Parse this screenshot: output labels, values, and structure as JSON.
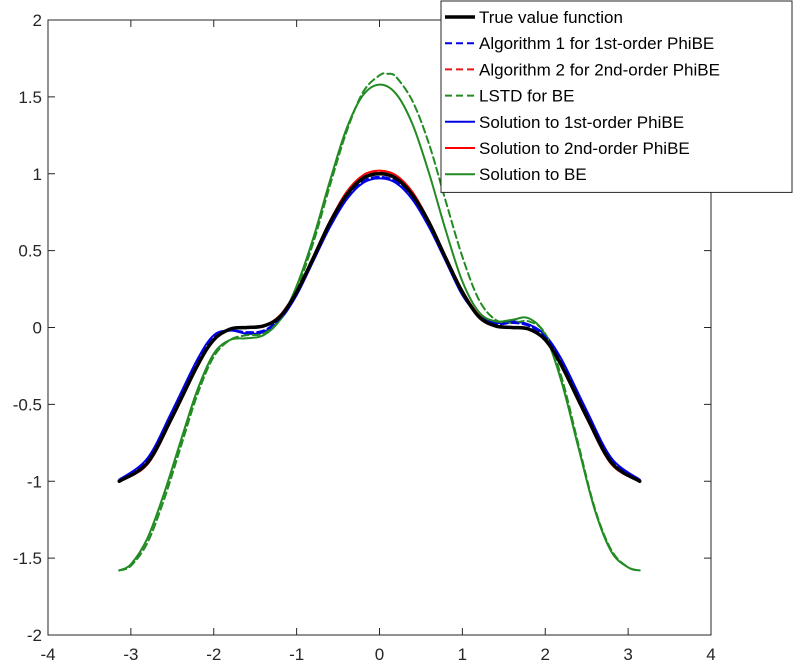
{
  "chart_data": {
    "type": "line",
    "xlim": [
      -4,
      4
    ],
    "ylim": [
      -2,
      2
    ],
    "xticks": [
      -4,
      -3,
      -2,
      -1,
      0,
      1,
      2,
      3,
      4
    ],
    "yticks": [
      -2,
      -1.5,
      -1,
      -0.5,
      0,
      0.5,
      1,
      1.5,
      2
    ],
    "grid": false,
    "legend_position": "top-right",
    "series": [
      {
        "name": "True value function",
        "color": "#000000",
        "style": "solid",
        "width": 3.5,
        "x": [
          -3.14,
          -2.8,
          -2.5,
          -2.2,
          -2.0,
          -1.8,
          -1.6,
          -1.4,
          -1.2,
          -1.0,
          -0.8,
          -0.6,
          -0.4,
          -0.2,
          0.0,
          0.2,
          0.4,
          0.6,
          0.8,
          1.0,
          1.2,
          1.4,
          1.6,
          1.8,
          2.0,
          2.2,
          2.5,
          2.8,
          3.14
        ],
        "y": [
          -1.0,
          -0.88,
          -0.58,
          -0.25,
          -0.08,
          -0.01,
          0.0,
          0.01,
          0.07,
          0.23,
          0.45,
          0.68,
          0.86,
          0.97,
          1.0,
          0.97,
          0.86,
          0.68,
          0.45,
          0.23,
          0.07,
          0.01,
          0.0,
          -0.01,
          -0.08,
          -0.25,
          -0.58,
          -0.88,
          -1.0
        ]
      },
      {
        "name": "Algorithm 1 for 1st-order PhiBE",
        "color": "#0000e6",
        "style": "dashed",
        "width": 2,
        "x": [
          -3.14,
          -2.8,
          -2.5,
          -2.2,
          -2.0,
          -1.8,
          -1.6,
          -1.4,
          -1.2,
          -1.0,
          -0.8,
          -0.6,
          -0.4,
          -0.2,
          0.0,
          0.2,
          0.4,
          0.6,
          0.8,
          1.0,
          1.2,
          1.4,
          1.6,
          1.8,
          2.0,
          2.2,
          2.5,
          2.8,
          3.14
        ],
        "y": [
          -0.99,
          -0.86,
          -0.55,
          -0.22,
          -0.06,
          -0.02,
          -0.03,
          -0.02,
          0.06,
          0.22,
          0.44,
          0.66,
          0.84,
          0.95,
          0.98,
          0.95,
          0.84,
          0.66,
          0.44,
          0.22,
          0.07,
          0.02,
          0.03,
          0.01,
          -0.06,
          -0.22,
          -0.55,
          -0.86,
          -0.99
        ]
      },
      {
        "name": "Algorithm 2 for 2nd-order PhiBE",
        "color": "#e61919",
        "style": "dashed",
        "width": 2,
        "x": [
          -3.14,
          -2.8,
          -2.5,
          -2.2,
          -2.0,
          -1.8,
          -1.6,
          -1.4,
          -1.2,
          -1.0,
          -0.8,
          -0.6,
          -0.4,
          -0.2,
          0.0,
          0.2,
          0.4,
          0.6,
          0.8,
          1.0,
          1.2,
          1.4,
          1.6,
          1.8,
          2.0,
          2.2,
          2.5,
          2.8,
          3.14
        ],
        "y": [
          -1.0,
          -0.89,
          -0.59,
          -0.26,
          -0.08,
          -0.01,
          0.0,
          0.01,
          0.08,
          0.24,
          0.46,
          0.69,
          0.87,
          0.98,
          1.01,
          0.98,
          0.87,
          0.69,
          0.46,
          0.24,
          0.08,
          0.01,
          0.0,
          -0.01,
          -0.08,
          -0.26,
          -0.59,
          -0.89,
          -1.0
        ]
      },
      {
        "name": "LSTD for BE",
        "color": "#228b22",
        "style": "dashed",
        "width": 2,
        "x": [
          -3.14,
          -3.0,
          -2.8,
          -2.6,
          -2.4,
          -2.2,
          -2.0,
          -1.8,
          -1.6,
          -1.4,
          -1.2,
          -1.0,
          -0.8,
          -0.6,
          -0.4,
          -0.2,
          0.0,
          0.1,
          0.2,
          0.4,
          0.6,
          0.8,
          1.0,
          1.2,
          1.4,
          1.6,
          1.8,
          2.0,
          2.2,
          2.4,
          2.6,
          2.8,
          3.0,
          3.14
        ],
        "y": [
          -1.58,
          -1.55,
          -1.4,
          -1.12,
          -0.78,
          -0.44,
          -0.19,
          -0.08,
          -0.05,
          -0.04,
          0.05,
          0.25,
          0.55,
          0.92,
          1.27,
          1.53,
          1.64,
          1.65,
          1.63,
          1.47,
          1.19,
          0.82,
          0.46,
          0.18,
          0.05,
          0.03,
          0.04,
          -0.04,
          -0.33,
          -0.76,
          -1.18,
          -1.45,
          -1.56,
          -1.58
        ]
      },
      {
        "name": "Solution to 1st-order PhiBE",
        "color": "#0000e6",
        "style": "solid",
        "width": 2,
        "x": [
          -3.14,
          -2.8,
          -2.5,
          -2.2,
          -2.0,
          -1.8,
          -1.6,
          -1.4,
          -1.2,
          -1.0,
          -0.8,
          -0.6,
          -0.4,
          -0.2,
          0.0,
          0.2,
          0.4,
          0.6,
          0.8,
          1.0,
          1.2,
          1.4,
          1.6,
          1.8,
          2.0,
          2.2,
          2.5,
          2.8,
          3.14
        ],
        "y": [
          -0.99,
          -0.85,
          -0.54,
          -0.21,
          -0.05,
          -0.02,
          -0.04,
          -0.03,
          0.05,
          0.21,
          0.43,
          0.65,
          0.83,
          0.94,
          0.97,
          0.94,
          0.83,
          0.65,
          0.43,
          0.21,
          0.08,
          0.03,
          0.04,
          0.02,
          -0.05,
          -0.21,
          -0.54,
          -0.85,
          -0.99
        ]
      },
      {
        "name": "Solution to 2nd-order PhiBE",
        "color": "#ff0000",
        "style": "solid",
        "width": 2,
        "x": [
          -3.14,
          -2.8,
          -2.5,
          -2.2,
          -2.0,
          -1.8,
          -1.6,
          -1.4,
          -1.2,
          -1.0,
          -0.8,
          -0.6,
          -0.4,
          -0.2,
          0.0,
          0.2,
          0.4,
          0.6,
          0.8,
          1.0,
          1.2,
          1.4,
          1.6,
          1.8,
          2.0,
          2.2,
          2.5,
          2.8,
          3.14
        ],
        "y": [
          -1.0,
          -0.89,
          -0.59,
          -0.26,
          -0.08,
          -0.01,
          0.0,
          0.01,
          0.08,
          0.24,
          0.46,
          0.69,
          0.88,
          0.99,
          1.02,
          0.99,
          0.88,
          0.69,
          0.46,
          0.24,
          0.08,
          0.01,
          0.0,
          -0.01,
          -0.08,
          -0.26,
          -0.59,
          -0.89,
          -1.0
        ]
      },
      {
        "name": "Solution to BE",
        "color": "#228b22",
        "style": "solid",
        "width": 2,
        "x": [
          -3.14,
          -3.0,
          -2.8,
          -2.6,
          -2.4,
          -2.2,
          -2.0,
          -1.8,
          -1.6,
          -1.4,
          -1.2,
          -1.0,
          -0.8,
          -0.6,
          -0.4,
          -0.2,
          0.0,
          0.2,
          0.4,
          0.6,
          0.8,
          1.0,
          1.2,
          1.4,
          1.6,
          1.8,
          2.0,
          2.2,
          2.4,
          2.6,
          2.8,
          3.0,
          3.14
        ],
        "y": [
          -1.58,
          -1.54,
          -1.37,
          -1.08,
          -0.74,
          -0.41,
          -0.17,
          -0.08,
          -0.07,
          -0.05,
          0.05,
          0.27,
          0.58,
          0.95,
          1.29,
          1.51,
          1.58,
          1.52,
          1.32,
          1.0,
          0.63,
          0.3,
          0.1,
          0.04,
          0.05,
          0.06,
          -0.05,
          -0.36,
          -0.78,
          -1.19,
          -1.46,
          -1.56,
          -1.58
        ]
      }
    ]
  }
}
